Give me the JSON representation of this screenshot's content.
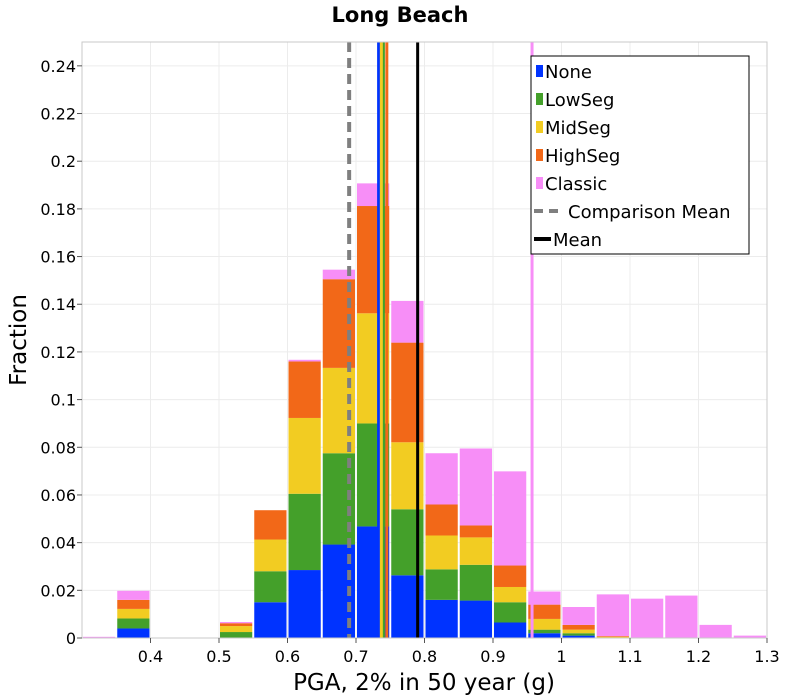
{
  "chart_data": {
    "type": "bar",
    "stacked": true,
    "title": "Long Beach",
    "xlabel": "PGA, 2% in 50 year (g)",
    "ylabel": "Fraction",
    "xlim": [
      0.3,
      1.3
    ],
    "ylim": [
      0,
      0.25
    ],
    "grid": true,
    "legend_position": "top-right",
    "x_ticks": [
      {
        "value": 0.4,
        "label": "0.4"
      },
      {
        "value": 0.5,
        "label": "0.5"
      },
      {
        "value": 0.6,
        "label": "0.6"
      },
      {
        "value": 0.7,
        "label": "0.7"
      },
      {
        "value": 0.8,
        "label": "0.8"
      },
      {
        "value": 0.9,
        "label": "0.9"
      },
      {
        "value": 1.0,
        "label": "1"
      },
      {
        "value": 1.1,
        "label": "1.1"
      },
      {
        "value": 1.2,
        "label": "1.2"
      },
      {
        "value": 1.3,
        "label": "1.3"
      }
    ],
    "y_ticks": [
      {
        "value": 0,
        "label": "0"
      },
      {
        "value": 0.02,
        "label": "0.02"
      },
      {
        "value": 0.04,
        "label": "0.04"
      },
      {
        "value": 0.06,
        "label": "0.06"
      },
      {
        "value": 0.08,
        "label": "0.08"
      },
      {
        "value": 0.1,
        "label": "0.1"
      },
      {
        "value": 0.12,
        "label": "0.12"
      },
      {
        "value": 0.14,
        "label": "0.14"
      },
      {
        "value": 0.16,
        "label": "0.16"
      },
      {
        "value": 0.18,
        "label": "0.18"
      },
      {
        "value": 0.2,
        "label": "0.2"
      },
      {
        "value": 0.22,
        "label": "0.22"
      },
      {
        "value": 0.24,
        "label": "0.24"
      }
    ],
    "bins": [
      {
        "x0": 0.3,
        "x1": 0.35
      },
      {
        "x0": 0.35,
        "x1": 0.4
      },
      {
        "x0": 0.4,
        "x1": 0.45
      },
      {
        "x0": 0.45,
        "x1": 0.5
      },
      {
        "x0": 0.5,
        "x1": 0.55
      },
      {
        "x0": 0.55,
        "x1": 0.6
      },
      {
        "x0": 0.6,
        "x1": 0.65
      },
      {
        "x0": 0.65,
        "x1": 0.7
      },
      {
        "x0": 0.7,
        "x1": 0.75
      },
      {
        "x0": 0.75,
        "x1": 0.8
      },
      {
        "x0": 0.8,
        "x1": 0.85
      },
      {
        "x0": 0.85,
        "x1": 0.9
      },
      {
        "x0": 0.9,
        "x1": 0.95
      },
      {
        "x0": 0.95,
        "x1": 1.0
      },
      {
        "x0": 1.0,
        "x1": 1.05
      },
      {
        "x0": 1.05,
        "x1": 1.1
      },
      {
        "x0": 1.1,
        "x1": 1.15
      },
      {
        "x0": 1.15,
        "x1": 1.2
      },
      {
        "x0": 1.2,
        "x1": 1.25
      },
      {
        "x0": 1.25,
        "x1": 1.3
      }
    ],
    "series": [
      {
        "name": "None",
        "color": "#0033ff",
        "values": [
          0,
          0.004,
          0,
          0,
          0,
          0.015,
          0.0285,
          0.0392,
          0.0468,
          0.0263,
          0.016,
          0.0157,
          0.0065,
          0.002,
          0.001,
          0,
          0,
          0,
          0,
          0
        ]
      },
      {
        "name": "LowSeg",
        "color": "#44a02a",
        "values": [
          0,
          0.0042,
          0,
          0,
          0.0025,
          0.013,
          0.032,
          0.0383,
          0.0432,
          0.0277,
          0.0128,
          0.015,
          0.0085,
          0.0015,
          0.001,
          0,
          0,
          0,
          0,
          0
        ]
      },
      {
        "name": "MidSeg",
        "color": "#f2cc22",
        "values": [
          0,
          0.004,
          0,
          0,
          0.0025,
          0.0133,
          0.0318,
          0.0358,
          0.0462,
          0.0281,
          0.0142,
          0.0115,
          0.0064,
          0.0045,
          0.0015,
          0.0005,
          0,
          0,
          0,
          0
        ]
      },
      {
        "name": "HighSeg",
        "color": "#f26818",
        "values": [
          0,
          0.0038,
          0,
          0,
          0.0012,
          0.0123,
          0.0237,
          0.0372,
          0.045,
          0.0418,
          0.013,
          0.005,
          0.009,
          0.006,
          0.002,
          0.0003,
          0,
          0,
          0,
          0
        ]
      },
      {
        "name": "Classic",
        "color": "#f78ef7",
        "values": [
          0.0005,
          0.0038,
          0,
          0,
          0.0005,
          0,
          0.0007,
          0.004,
          0.0095,
          0.0175,
          0.0215,
          0.0323,
          0.0395,
          0.0055,
          0.0075,
          0.0175,
          0.0165,
          0.0178,
          0.0055,
          0.001
        ]
      }
    ],
    "reference_lines": [
      {
        "name": "Comparison Mean",
        "style": "dashed",
        "color": "#7f7f7f",
        "x": 0.69
      },
      {
        "name": "Mean",
        "style": "solid",
        "color": "#000000",
        "x": 0.79
      },
      {
        "name": "None mean",
        "style": "solid",
        "color": "#0033ff",
        "x": 0.733
      },
      {
        "name": "LowSeg mean",
        "style": "solid",
        "color": "#44a02a",
        "x": 0.74
      },
      {
        "name": "MidSeg mean",
        "style": "solid",
        "color": "#f2cc22",
        "x": 0.737
      },
      {
        "name": "HighSeg mean",
        "style": "solid",
        "color": "#f26818",
        "x": 0.745
      },
      {
        "name": "Classic mean",
        "style": "solid",
        "color": "#f78ef7",
        "x": 0.957
      }
    ],
    "legend": [
      {
        "label": "None",
        "kind": "box",
        "color": "#0033ff"
      },
      {
        "label": "LowSeg",
        "kind": "box",
        "color": "#44a02a"
      },
      {
        "label": "MidSeg",
        "kind": "box",
        "color": "#f2cc22"
      },
      {
        "label": "HighSeg",
        "kind": "box",
        "color": "#f26818"
      },
      {
        "label": "Classic",
        "kind": "box",
        "color": "#f78ef7"
      },
      {
        "label": "Comparison Mean",
        "kind": "dashed",
        "color": "#7f7f7f"
      },
      {
        "label": "Mean",
        "kind": "solid",
        "color": "#000000"
      }
    ]
  }
}
